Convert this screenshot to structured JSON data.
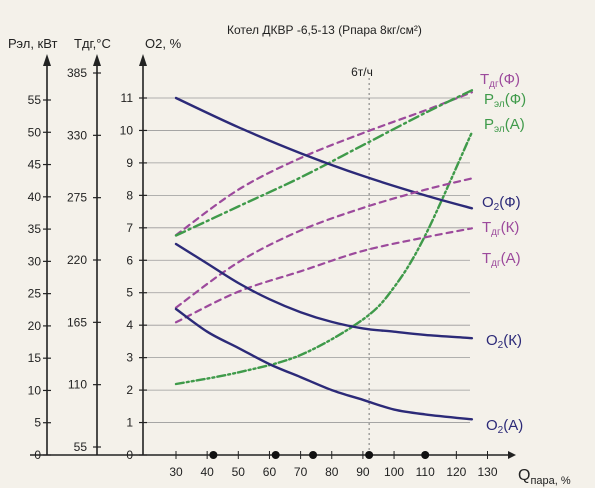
{
  "chart_data": {
    "type": "line",
    "title": "Котел ДКВР -6,5-13  (Рпара 8кг/см²)",
    "x_axis": {
      "label": "Qпара, %",
      "range": [
        25,
        132
      ],
      "ticks": [
        30,
        40,
        50,
        60,
        70,
        80,
        90,
        100,
        110,
        120,
        130
      ],
      "marker_dots": [
        42,
        62,
        74,
        92,
        110
      ]
    },
    "y_axes": [
      {
        "label": "Рэл, кВт",
        "range": [
          0,
          60
        ],
        "ticks": [
          0,
          5,
          10,
          15,
          20,
          25,
          30,
          35,
          40,
          45,
          50,
          55
        ]
      },
      {
        "label": "Тдг,°С",
        "range": [
          55,
          385
        ],
        "ticks": [
          55,
          110,
          165,
          220,
          275,
          330,
          385
        ]
      },
      {
        "label": "O2, %",
        "range": [
          0,
          12
        ],
        "ticks": [
          0,
          1,
          2,
          3,
          4,
          5,
          6,
          7,
          8,
          9,
          10,
          11
        ]
      }
    ],
    "annotations": [
      {
        "text": "6т/ч",
        "x": 92
      }
    ],
    "grid": true,
    "series": [
      {
        "name": "Тдг(Ф)",
        "axis": "Т",
        "style": "dash",
        "color": "#9c4a9c",
        "x": [
          30,
          50,
          70,
          90,
          110,
          125
        ],
        "y": [
          242,
          282,
          310,
          332,
          352,
          368
        ]
      },
      {
        "name": "Рэл(Ф)",
        "axis": "Р",
        "style": "dashdot",
        "color": "#3f9a4a",
        "x": [
          30,
          50,
          70,
          90,
          110,
          125
        ],
        "y": [
          34,
          38.5,
          43,
          48,
          53,
          56.5
        ]
      },
      {
        "name": "Рэл(А)",
        "axis": "Р",
        "style": "dashdotdot",
        "color": "#3f9a4a",
        "x": [
          30,
          50,
          70,
          90,
          100,
          110,
          125
        ],
        "y": [
          11,
          12.8,
          15.5,
          21,
          26,
          34,
          50
        ]
      },
      {
        "name": "O2 (Ф)",
        "axis": "O2",
        "style": "solid",
        "color": "#2c2a78",
        "x": [
          30,
          50,
          70,
          90,
          110,
          125
        ],
        "y": [
          11,
          10.1,
          9.3,
          8.6,
          8.0,
          7.6
        ]
      },
      {
        "name": "Тдг(К)",
        "axis": "Т",
        "style": "dash",
        "color": "#9c4a9c",
        "x": [
          30,
          50,
          70,
          90,
          110,
          125
        ],
        "y": [
          178,
          218,
          246,
          266,
          282,
          292
        ]
      },
      {
        "name": "Тдг(А)",
        "axis": "Т",
        "style": "dash",
        "color": "#9c4a9c",
        "x": [
          30,
          50,
          70,
          90,
          110,
          125
        ],
        "y": [
          165,
          192,
          210,
          228,
          240,
          248
        ]
      },
      {
        "name": "O2(К)",
        "axis": "O2",
        "style": "solid",
        "color": "#2c2a78",
        "x": [
          30,
          40,
          50,
          60,
          70,
          80,
          90,
          100,
          110,
          125
        ],
        "y": [
          6.5,
          5.9,
          5.3,
          4.8,
          4.4,
          4.1,
          3.9,
          3.8,
          3.7,
          3.6
        ]
      },
      {
        "name": "O2(А)",
        "axis": "O2",
        "style": "solid",
        "color": "#2c2a78",
        "x": [
          30,
          40,
          50,
          60,
          70,
          80,
          90,
          100,
          110,
          125
        ],
        "y": [
          4.5,
          3.8,
          3.3,
          2.8,
          2.4,
          2.0,
          1.7,
          1.4,
          1.25,
          1.1
        ]
      }
    ]
  }
}
